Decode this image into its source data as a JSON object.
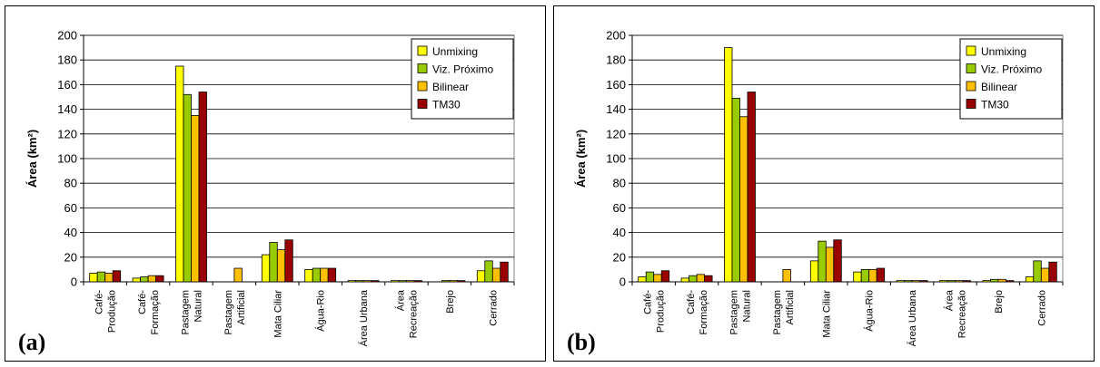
{
  "chart_data": [
    {
      "type": "bar",
      "panel_label": "(a)",
      "ylabel": "Área (km²)",
      "ylim": [
        0,
        200
      ],
      "yticks": [
        0,
        20,
        40,
        60,
        80,
        100,
        120,
        140,
        160,
        180,
        200
      ],
      "grid": true,
      "legend_position": "top-right",
      "categories": [
        [
          "Café-",
          "Produção"
        ],
        [
          "Café-",
          "Formação"
        ],
        [
          "Pastagem",
          "Natural"
        ],
        [
          "Pastagem",
          "Artificial"
        ],
        [
          "Mata Ciliar"
        ],
        [
          "Água-Rio"
        ],
        [
          "Área Urbana"
        ],
        [
          "Área",
          "Recreação"
        ],
        [
          "Brejo"
        ],
        [
          "Cerrado"
        ]
      ],
      "series": [
        {
          "name": "Unmixing",
          "color": "#ffff00",
          "values": [
            7,
            3,
            175,
            0,
            22,
            10,
            1,
            1,
            0,
            9
          ]
        },
        {
          "name": "Viz. Próximo",
          "color": "#99cc00",
          "values": [
            8,
            4,
            152,
            0,
            32,
            11,
            1,
            1,
            1,
            17
          ]
        },
        {
          "name": "Bilinear",
          "color": "#ffc000",
          "values": [
            7,
            5,
            135,
            11,
            26,
            11,
            1,
            1,
            1,
            11
          ]
        },
        {
          "name": "TM30",
          "color": "#990000",
          "values": [
            9,
            5,
            154,
            0,
            34,
            11,
            1,
            1,
            1,
            16
          ]
        }
      ]
    },
    {
      "type": "bar",
      "panel_label": "(b)",
      "ylabel": "Área (km²)",
      "ylim": [
        0,
        200
      ],
      "yticks": [
        0,
        20,
        40,
        60,
        80,
        100,
        120,
        140,
        160,
        180,
        200
      ],
      "grid": true,
      "legend_position": "top-right",
      "categories": [
        [
          "Café-",
          "Produção"
        ],
        [
          "Café-",
          "Formação"
        ],
        [
          "Pastagem",
          "Natural"
        ],
        [
          "Pastagem",
          "Artificial"
        ],
        [
          "Mata Ciliar"
        ],
        [
          "Água-Rio"
        ],
        [
          "Área Urbana"
        ],
        [
          "Área",
          "Recreação"
        ],
        [
          "Brejo"
        ],
        [
          "Cerrado"
        ]
      ],
      "series": [
        {
          "name": "Unmixing",
          "color": "#ffff00",
          "values": [
            4,
            3,
            190,
            0,
            17,
            8,
            1,
            1,
            1,
            4
          ]
        },
        {
          "name": "Viz. Próximo",
          "color": "#99cc00",
          "values": [
            8,
            5,
            149,
            0,
            33,
            10,
            1,
            1,
            2,
            17
          ]
        },
        {
          "name": "Bilinear",
          "color": "#ffc000",
          "values": [
            6,
            6,
            134,
            10,
            28,
            10,
            1,
            1,
            2,
            11
          ]
        },
        {
          "name": "TM30",
          "color": "#990000",
          "values": [
            9,
            5,
            154,
            0,
            34,
            11,
            1,
            1,
            1,
            16
          ]
        }
      ]
    }
  ]
}
